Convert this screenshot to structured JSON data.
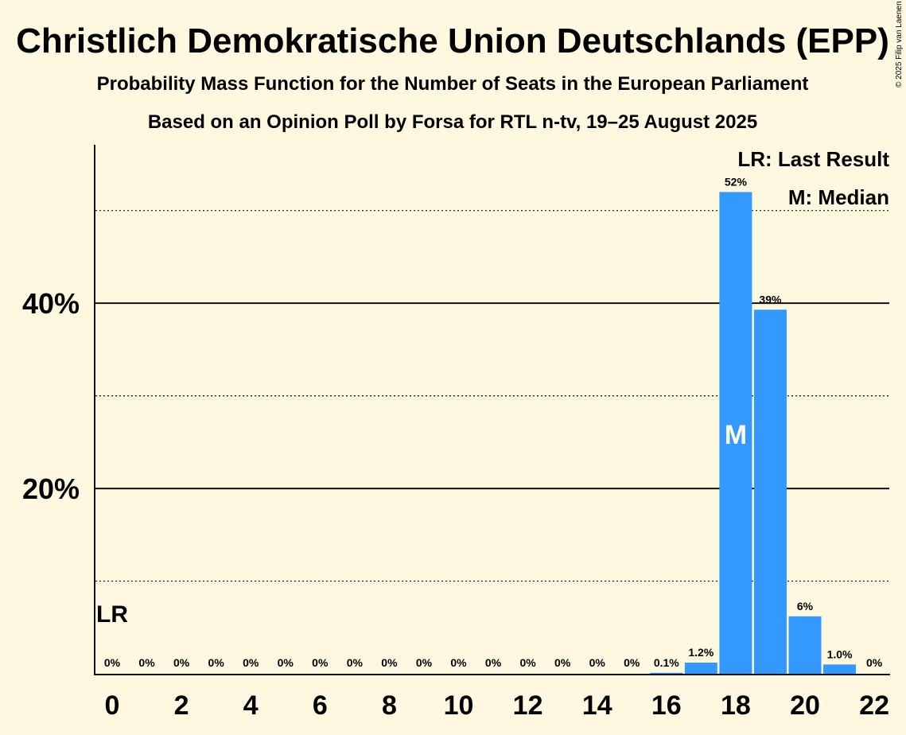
{
  "chart_data": {
    "type": "bar",
    "title": "Christlich Demokratische Union Deutschlands (EPP)",
    "subtitle": "Probability Mass Function for the Number of Seats in the European Parliament",
    "subtitle2": "Based on an Opinion Poll by Forsa for RTL n-tv, 19–25 August 2025",
    "xlabel": "",
    "ylabel": "",
    "x": [
      0,
      1,
      2,
      3,
      4,
      5,
      6,
      7,
      8,
      9,
      10,
      11,
      12,
      13,
      14,
      15,
      16,
      17,
      18,
      19,
      20,
      21,
      22
    ],
    "values": [
      0,
      0,
      0,
      0,
      0,
      0,
      0,
      0,
      0,
      0,
      0,
      0,
      0,
      0,
      0,
      0,
      0.1,
      1.2,
      52,
      39.3,
      6.2,
      1.0,
      0
    ],
    "value_labels": [
      "0%",
      "0%",
      "0%",
      "0%",
      "0%",
      "0%",
      "0%",
      "0%",
      "0%",
      "0%",
      "0%",
      "0%",
      "0%",
      "0%",
      "0%",
      "0%",
      "0.1%",
      "1.2%",
      "52%",
      "39%",
      "6%",
      "1.0%",
      "0%"
    ],
    "x_ticks": [
      "0",
      "2",
      "4",
      "6",
      "8",
      "10",
      "12",
      "14",
      "16",
      "18",
      "20",
      "22"
    ],
    "x_tick_values": [
      0,
      2,
      4,
      6,
      8,
      10,
      12,
      14,
      16,
      18,
      20,
      22
    ],
    "y_ticks": [
      "20%",
      "40%"
    ],
    "y_tick_values": [
      20,
      40
    ],
    "ylim": [
      0,
      56.5
    ],
    "gridlines_major": [
      20,
      40
    ],
    "gridlines_minor": [
      10,
      30,
      50
    ],
    "bar_color": "#3399FF",
    "last_result_seat": 0,
    "last_result_label": "LR",
    "median_seat": 18,
    "median_label": "M",
    "legend": [
      "LR: Last Result",
      "M: Median"
    ],
    "legend_placement": "top-right"
  },
  "copyright": "© 2025 Filip van Laenen"
}
